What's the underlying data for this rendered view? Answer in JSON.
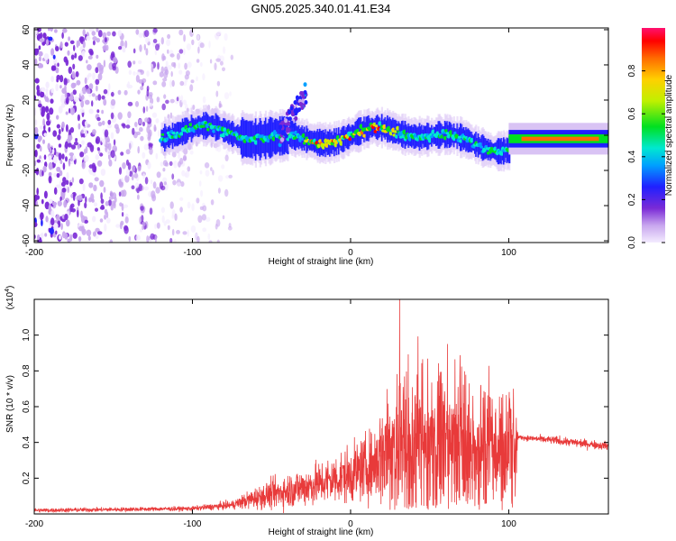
{
  "title": "GN05.2025.340.01.41.E34",
  "colors": {
    "snr_line": "#e83a3a",
    "axis": "#000000",
    "background": "#ffffff"
  },
  "chart_data": [
    {
      "type": "heatmap",
      "name": "spectrogram",
      "xlabel": "Height of straight line (km)",
      "ylabel": "Frequency (Hz)",
      "xlim": [
        -200,
        163
      ],
      "ylim": [
        -61,
        61
      ],
      "x_ticks": [
        -200,
        -100,
        0,
        100
      ],
      "y_ticks": [
        -60,
        -40,
        -20,
        0,
        20,
        40,
        60
      ],
      "colorbar": {
        "label": "Normalized spectral amplitude",
        "ticks": [
          "0.0",
          "0.2",
          "0.4",
          "0.6",
          "0.8"
        ],
        "tick_values": [
          0.0,
          0.2,
          0.4,
          0.6,
          0.8
        ],
        "range": [
          0,
          1
        ]
      },
      "regions": [
        {
          "description": "broadband noise",
          "x_range": [
            -200,
            -75
          ],
          "freq_range": [
            -61,
            61
          ],
          "amplitude": 0.25
        },
        {
          "description": "signal band (noisy)",
          "x_range": [
            -120,
            100
          ],
          "freq_center": 0,
          "amplitude": 0.45
        },
        {
          "description": "burst",
          "x_range": [
            -45,
            -28
          ],
          "freq_range": [
            5,
            30
          ],
          "amplitude": 0.3
        },
        {
          "description": "stable tone",
          "x_range": [
            100,
            163
          ],
          "freq_center": -2,
          "amplitude": 0.85
        }
      ]
    },
    {
      "type": "line",
      "name": "snr",
      "xlabel": "Height of straight line (km)",
      "ylabel": "SNR (10 * v/v)",
      "y_scale_label": "(x10",
      "y_scale_exp": "4",
      "xlim": [
        -200,
        163
      ],
      "ylim": [
        0,
        1.2
      ],
      "x_ticks": [
        -200,
        -100,
        0,
        100
      ],
      "y_ticks": [
        "0.2",
        "0.4",
        "0.6",
        "0.8",
        "1.0"
      ],
      "y_tick_values": [
        0.2,
        0.4,
        0.6,
        0.8,
        1.0
      ],
      "envelope": [
        {
          "x": -200,
          "base": 0.02,
          "spread": 0.01
        },
        {
          "x": -100,
          "base": 0.03,
          "spread": 0.01
        },
        {
          "x": -75,
          "base": 0.05,
          "spread": 0.02
        },
        {
          "x": -60,
          "base": 0.09,
          "spread": 0.05
        },
        {
          "x": -40,
          "base": 0.13,
          "spread": 0.08
        },
        {
          "x": -20,
          "base": 0.17,
          "spread": 0.1
        },
        {
          "x": 0,
          "base": 0.22,
          "spread": 0.13
        },
        {
          "x": 15,
          "base": 0.28,
          "spread": 0.16
        },
        {
          "x": 25,
          "base": 0.4,
          "spread": 0.35
        },
        {
          "x": 30,
          "base": 0.42,
          "spread": 0.65
        },
        {
          "x": 60,
          "base": 0.44,
          "spread": 0.55
        },
        {
          "x": 90,
          "base": 0.4,
          "spread": 0.45
        },
        {
          "x": 104,
          "base": 0.4,
          "spread": 0.55
        },
        {
          "x": 106,
          "base": 0.43,
          "spread": 0.01
        },
        {
          "x": 130,
          "base": 0.41,
          "spread": 0.02
        },
        {
          "x": 163,
          "base": 0.38,
          "spread": 0.02
        }
      ],
      "peak": {
        "x": 31,
        "y": 1.2
      }
    }
  ]
}
